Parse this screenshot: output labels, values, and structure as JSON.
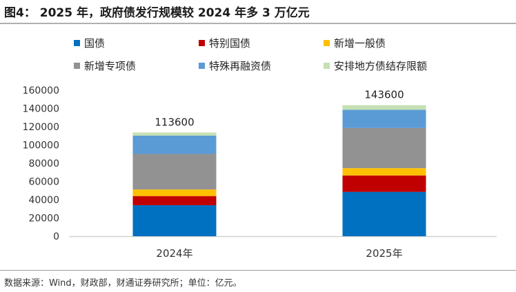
{
  "title": "图4： 2025 年，政府债发行规模较 2024 年多 3 万亿元",
  "source": "数据来源：Wind，财政部，财通证券研究所；单位：亿元。",
  "chart_data": {
    "type": "bar",
    "stacked": true,
    "categories": [
      "2024年",
      "2025年"
    ],
    "series": [
      {
        "name": "国债",
        "color": "#0070C0",
        "values": [
          34000,
          48600
        ]
      },
      {
        "name": "特别国债",
        "color": "#C00000",
        "values": [
          10000,
          18000
        ]
      },
      {
        "name": "新增一般债",
        "color": "#FFC000",
        "values": [
          7200,
          8000
        ]
      },
      {
        "name": "新增专项债",
        "color": "#929292",
        "values": [
          39000,
          44000
        ]
      },
      {
        "name": "特殊再融资债",
        "color": "#5B9BD5",
        "values": [
          20000,
          20000
        ]
      },
      {
        "name": "安排地方债结存限额",
        "color": "#C5E0B4",
        "values": [
          3400,
          5000
        ]
      }
    ],
    "totals": [
      "113600",
      "143600"
    ],
    "ylim": [
      0,
      160000
    ],
    "yticks": [
      "0",
      "20000",
      "40000",
      "60000",
      "80000",
      "100000",
      "120000",
      "140000",
      "160000"
    ],
    "legend": "top"
  }
}
